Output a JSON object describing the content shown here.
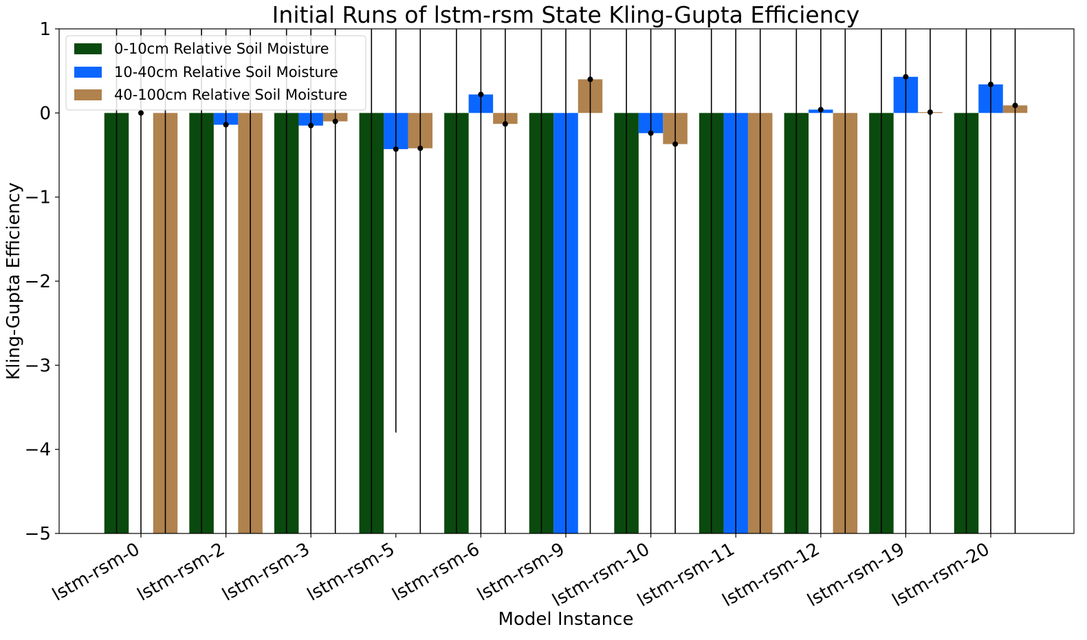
{
  "chart_data": {
    "type": "bar",
    "title": "Initial Runs of lstm-rsm State Kling-Gupta Efficiency",
    "xlabel": "Model Instance",
    "ylabel": "Kling-Gupta Efficiency",
    "ylim": [
      -5,
      1
    ],
    "yticks": [
      1,
      0,
      -1,
      -2,
      -3,
      -4,
      -5
    ],
    "ytick_labels": [
      "1",
      "0",
      "−1",
      "−2",
      "−3",
      "−4",
      "−5"
    ],
    "grid": false,
    "legend_position": "top-left",
    "categories": [
      "lstm-rsm-0",
      "lstm-rsm-2",
      "lstm-rsm-3",
      "lstm-rsm-5",
      "lstm-rsm-6",
      "lstm-rsm-9",
      "lstm-rsm-10",
      "lstm-rsm-11",
      "lstm-rsm-12",
      "lstm-rsm-19",
      "lstm-rsm-20"
    ],
    "series": [
      {
        "name": "0-10cm Relative Soil Moisture",
        "color": "#0a4a0e",
        "values": [
          -5,
          -5,
          -5,
          -5,
          -5,
          -5,
          -5,
          -5,
          -5,
          -5,
          -5
        ],
        "error_low": [
          -5,
          -5,
          -5,
          -5,
          -5,
          -5,
          -5,
          -5,
          -5,
          -5,
          -5
        ],
        "error_high": [
          1,
          1,
          1,
          1,
          1,
          1,
          1,
          1,
          1,
          1,
          1
        ],
        "show_marker": false
      },
      {
        "name": "10-40cm Relative Soil Moisture",
        "color": "#0a66ff",
        "values": [
          0,
          -0.14,
          -0.15,
          -0.43,
          0.22,
          -5,
          -0.24,
          -5,
          0.04,
          0.43,
          0.34
        ],
        "error_low": [
          -5,
          -5,
          -5,
          -3.8,
          -5,
          -5,
          -5,
          -5,
          -5,
          -5,
          -5
        ],
        "error_high": [
          1,
          1,
          1,
          1,
          1,
          1,
          1,
          1,
          1,
          1,
          1
        ],
        "show_marker": [
          true,
          true,
          true,
          true,
          true,
          false,
          true,
          false,
          true,
          true,
          true
        ]
      },
      {
        "name": "40-100cm Relative Soil Moisture",
        "color": "#b0824e",
        "values": [
          -5,
          -5,
          -0.1,
          -0.42,
          -0.13,
          0.4,
          -0.37,
          -5,
          -5,
          0.01,
          0.09
        ],
        "error_low": [
          -5,
          -5,
          -5,
          -5,
          -5,
          -5,
          -5,
          -5,
          -5,
          -5,
          -5
        ],
        "error_high": [
          1,
          1,
          1,
          1,
          1,
          1,
          1,
          1,
          1,
          1,
          1
        ],
        "show_marker": [
          false,
          false,
          true,
          true,
          true,
          true,
          true,
          false,
          false,
          true,
          true
        ]
      }
    ]
  }
}
